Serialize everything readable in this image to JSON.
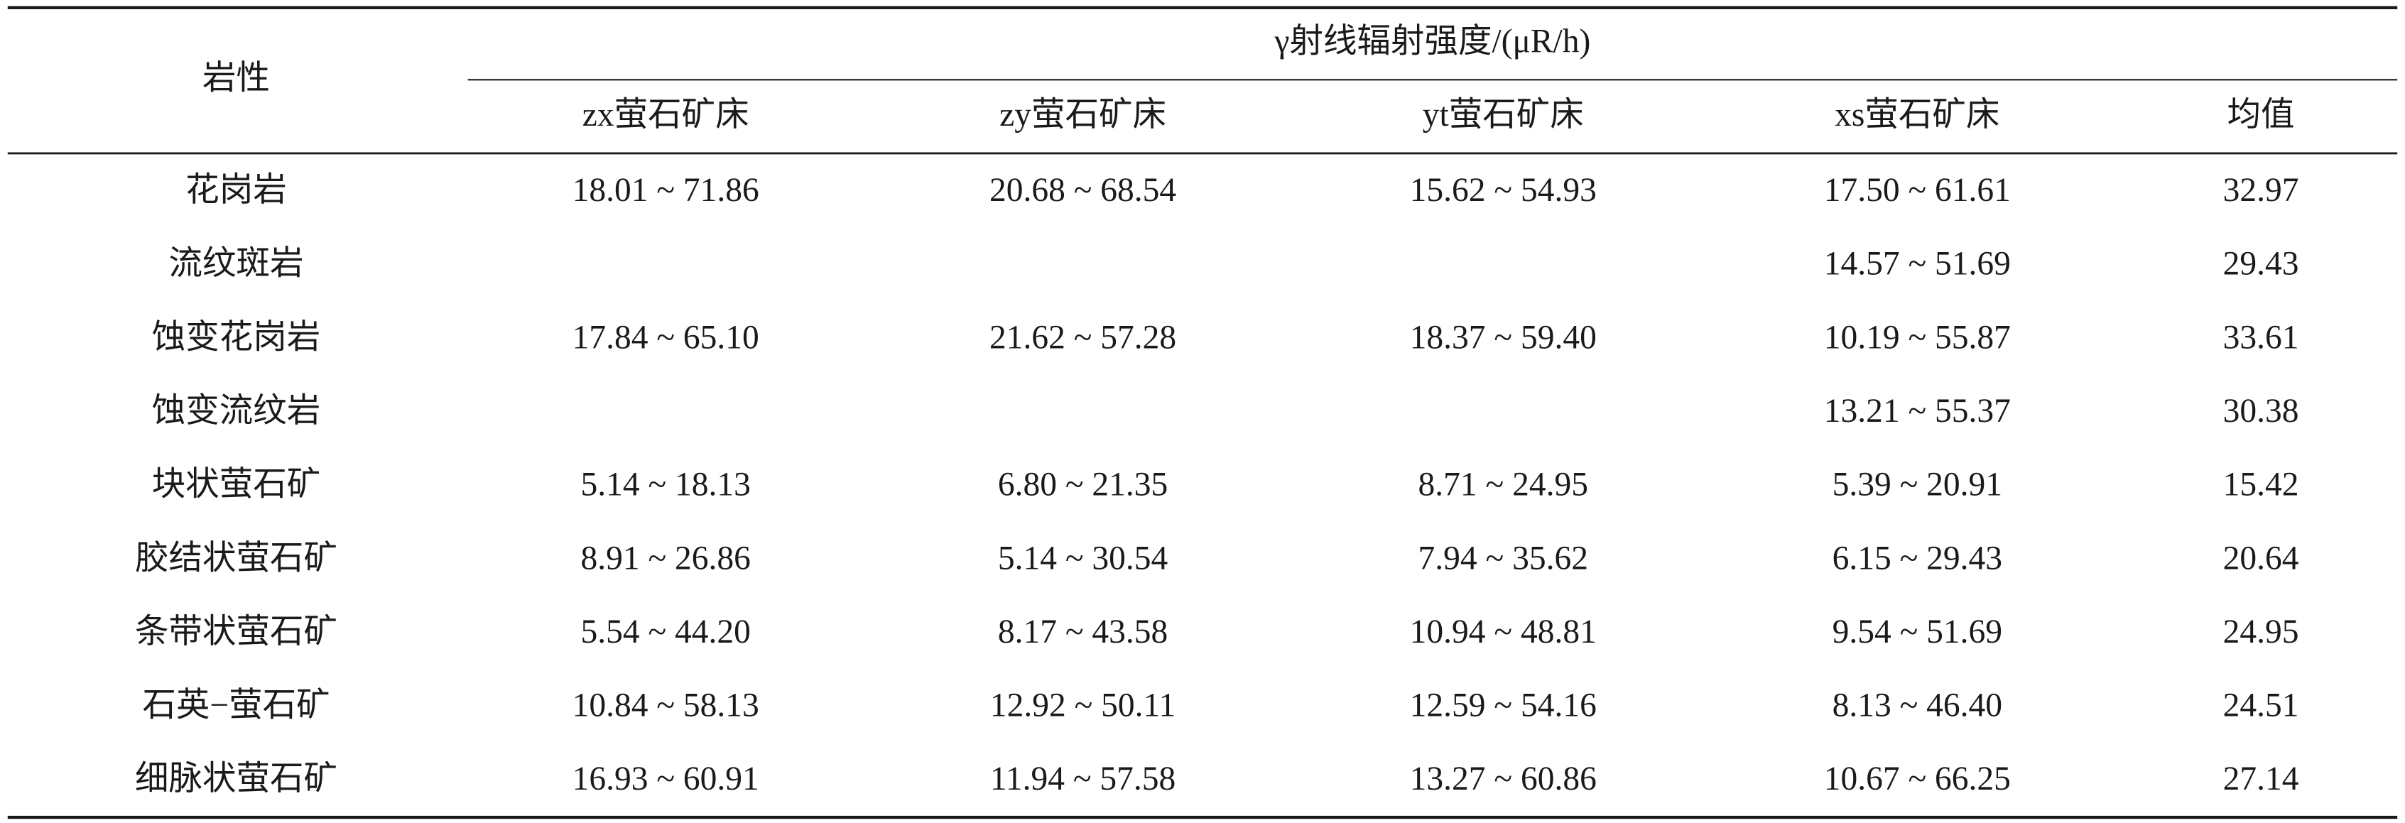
{
  "table": {
    "row_header": "岩性",
    "group_header": "γ射线辐射强度/(μR/h)",
    "columns": [
      "zx萤石矿床",
      "zy萤石矿床",
      "yt萤石矿床",
      "xs萤石矿床",
      "均值"
    ],
    "rows": [
      {
        "label": "花岗岩",
        "cells": [
          "18.01 ~ 71.86",
          "20.68 ~ 68.54",
          "15.62 ~ 54.93",
          "17.50 ~ 61.61",
          "32.97"
        ]
      },
      {
        "label": "流纹斑岩",
        "cells": [
          null,
          null,
          null,
          "14.57 ~ 51.69",
          "29.43"
        ]
      },
      {
        "label": "蚀变花岗岩",
        "cells": [
          "17.84 ~ 65.10",
          "21.62 ~ 57.28",
          "18.37 ~ 59.40",
          "10.19 ~ 55.87",
          "33.61"
        ]
      },
      {
        "label": "蚀变流纹岩",
        "cells": [
          null,
          null,
          null,
          "13.21 ~ 55.37",
          "30.38"
        ]
      },
      {
        "label": "块状萤石矿",
        "cells": [
          "5.14 ~ 18.13",
          "6.80 ~ 21.35",
          "8.71 ~ 24.95",
          "5.39 ~ 20.91",
          "15.42"
        ]
      },
      {
        "label": "胶结状萤石矿",
        "cells": [
          "8.91 ~ 26.86",
          "5.14 ~ 30.54",
          "7.94 ~ 35.62",
          "6.15 ~ 29.43",
          "20.64"
        ]
      },
      {
        "label": "条带状萤石矿",
        "cells": [
          "5.54 ~ 44.20",
          "8.17 ~ 43.58",
          "10.94 ~ 48.81",
          "9.54 ~ 51.69",
          "24.95"
        ]
      },
      {
        "label": "石英−萤石矿",
        "cells": [
          "10.84 ~ 58.13",
          "12.92 ~ 50.11",
          "12.59 ~ 54.16",
          "8.13 ~ 46.40",
          "24.51"
        ]
      },
      {
        "label": "细脉状萤石矿",
        "cells": [
          "16.93 ~ 60.91",
          "11.94 ~ 57.58",
          "13.27 ~ 60.86",
          "10.67 ~ 66.25",
          "27.14"
        ]
      }
    ]
  }
}
